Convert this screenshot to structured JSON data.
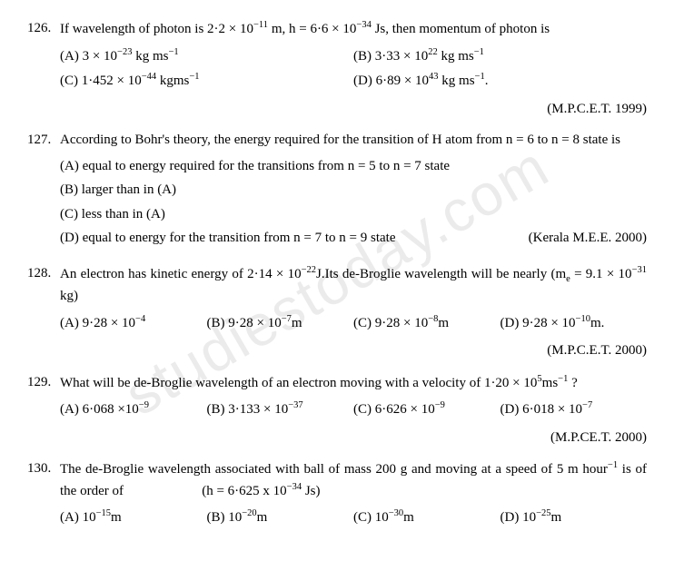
{
  "watermark": "studiestoday.com",
  "questions": [
    {
      "num": "126.",
      "text": "If wavelength of photon is 2·2 × 10<sup>−11</sup> m, h = 6·6 × 10<sup>−34</sup> Js, then momentum of photon is",
      "layout": "two-col",
      "options": [
        "(A) 3 × 10<sup>−23</sup> kg ms<sup>−1</sup>",
        "(B) 3·33 × 10<sup>22</sup> kg ms<sup>−1</sup>",
        "(C) 1·452 × 10<sup>−44</sup> kgms<sup>−1</sup>",
        "(D) 6·89 × 10<sup>43</sup> kg ms<sup>−1</sup>."
      ],
      "source": "(M.P.C.E.T. 1999)"
    },
    {
      "num": "127.",
      "text": "According to Bohr's theory, the energy required for the transition of H atom from n = 6 to n = 8 state is",
      "layout": "list",
      "options": [
        "(A) equal to energy required for the transitions from n = 5 to n = 7 state",
        "(B) larger than in (A)",
        "(C) less than in (A)",
        "(D) equal to energy for the transition from n = 7 to n = 9 state <span class=\"source-inline\">(Kerala M.E.E. 2000)</span>"
      ],
      "source": ""
    },
    {
      "num": "128.",
      "text": "An electron has kinetic energy of 2·14 × 10<sup>−22</sup>J.Its de-Broglie wavelength will be nearly (m<sub>e</sub> = 9.1 × 10<sup>−31</sup> kg)",
      "layout": "four-col",
      "options": [
        "(A) 9·28 × 10<sup>−4</sup>",
        "(B) 9·28 × 10<sup>−7</sup>m",
        "(C) 9·28 × 10<sup>−8</sup>m",
        "(D) 9·28 × 10<sup>−10</sup>m."
      ],
      "source": "(M.P.C.E.T. 2000)"
    },
    {
      "num": "129.",
      "text": "What will be de-Broglie wavelength of an electron moving with a velocity of 1·20 × 10<sup>5</sup>ms<sup>−1</sup> ?",
      "layout": "four-col",
      "options": [
        "(A) 6·068 ×10<sup>−9</sup>",
        "(B) 3·133 × 10<sup>−37</sup>",
        "(C) 6·626 × 10<sup>−9</sup>",
        "(D) 6·018 × 10<sup>−7</sup>"
      ],
      "source": "(M.P.CE.T. 2000)"
    },
    {
      "num": "130.",
      "text": "The de-Broglie wavelength associated with ball of mass 200 g and moving at a speed of 5 m hour<sup>−1</sup> is of the order of &nbsp;&nbsp;&nbsp;&nbsp;&nbsp;&nbsp;&nbsp;&nbsp;&nbsp;&nbsp;&nbsp;&nbsp;&nbsp;&nbsp;&nbsp;&nbsp;&nbsp;&nbsp;&nbsp;&nbsp;&nbsp;&nbsp;(h = 6·625 x 10<sup>−34</sup> Js)",
      "layout": "four-col",
      "options": [
        "(A) 10<sup>−15</sup>m",
        "(B) 10<sup>−20</sup>m",
        "(C) 10<sup>−30</sup>m",
        "(D) 10<sup>−25</sup>m"
      ],
      "source": ""
    }
  ]
}
